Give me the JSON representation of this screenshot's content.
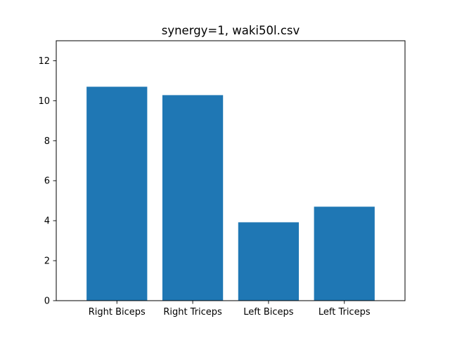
{
  "chart_data": {
    "type": "bar",
    "title": "synergy=1, waki50l.csv",
    "xlabel": "",
    "ylabel": "",
    "categories": [
      "Right Biceps",
      "Right Triceps",
      "Left Biceps",
      "Left Triceps"
    ],
    "values": [
      10.7,
      10.28,
      3.92,
      4.7
    ],
    "ylim": [
      0,
      13
    ],
    "yticks": [
      0,
      2,
      4,
      6,
      8,
      10,
      12
    ],
    "grid": false,
    "legend": "none",
    "bar_color": "#1f77b4"
  }
}
